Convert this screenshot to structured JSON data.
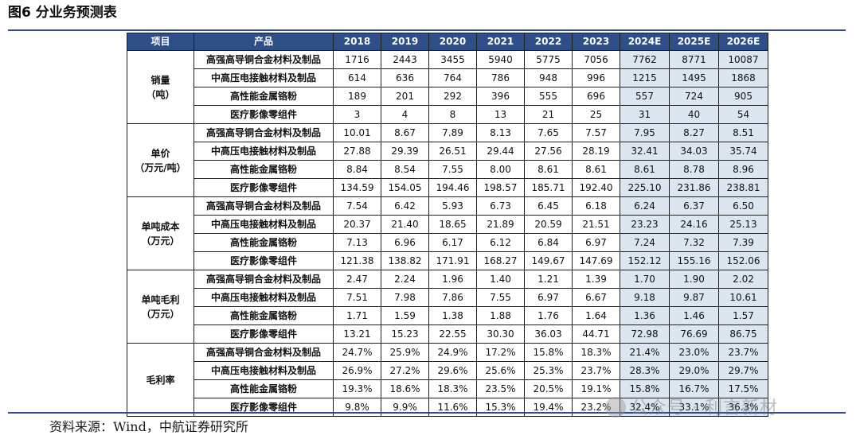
{
  "title": "图6  分业务预测表",
  "source": "资料来源：Wind，中航证券研究所",
  "watermark": "公众号 · 利言新材",
  "colors": {
    "header_bg": "#2d4e86",
    "header_text": "#ffffff",
    "estimate_bg": "#dce6f1",
    "rule": "#2d4e86"
  },
  "table": {
    "headers": [
      "项目",
      "产品",
      "2018",
      "2019",
      "2020",
      "2021",
      "2022",
      "2023",
      "2024E",
      "2025E",
      "2026E"
    ],
    "groups": [
      {
        "label_line1": "销量",
        "label_line2": "（吨）",
        "rows": [
          {
            "product": "高强高导铜合金材料及制品",
            "values": [
              "1716",
              "2443",
              "3455",
              "5940",
              "5775",
              "7056",
              "7762",
              "8771",
              "10087"
            ]
          },
          {
            "product": "中高压电接触材料及制品",
            "values": [
              "614",
              "636",
              "764",
              "786",
              "948",
              "996",
              "1215",
              "1495",
              "1868"
            ]
          },
          {
            "product": "高性能金属铬粉",
            "values": [
              "189",
              "201",
              "292",
              "396",
              "555",
              "696",
              "557",
              "724",
              "905"
            ]
          },
          {
            "product": "医疗影像零组件",
            "values": [
              "3",
              "4",
              "8",
              "13",
              "21",
              "25",
              "31",
              "40",
              "54"
            ]
          }
        ]
      },
      {
        "label_line1": "单价",
        "label_line2": "（万元/吨）",
        "rows": [
          {
            "product": "高强高导铜合金材料及制品",
            "values": [
              "10.01",
              "8.67",
              "7.89",
              "8.13",
              "7.65",
              "7.57",
              "7.95",
              "8.27",
              "8.51"
            ]
          },
          {
            "product": "中高压电接触材料及制品",
            "values": [
              "27.88",
              "29.39",
              "26.51",
              "29.44",
              "27.56",
              "28.19",
              "32.41",
              "34.03",
              "35.74"
            ]
          },
          {
            "product": "高性能金属铬粉",
            "values": [
              "8.84",
              "8.54",
              "7.55",
              "8.00",
              "8.61",
              "8.61",
              "8.61",
              "8.78",
              "8.96"
            ]
          },
          {
            "product": "医疗影像零组件",
            "values": [
              "134.59",
              "154.05",
              "194.46",
              "198.57",
              "185.71",
              "192.40",
              "225.10",
              "231.86",
              "238.81"
            ]
          }
        ]
      },
      {
        "label_line1": "单吨成本",
        "label_line2": "（万元）",
        "rows": [
          {
            "product": "高强高导铜合金材料及制品",
            "values": [
              "7.54",
              "6.42",
              "5.93",
              "6.73",
              "6.45",
              "6.18",
              "6.24",
              "6.37",
              "6.50"
            ]
          },
          {
            "product": "中高压电接触材料及制品",
            "values": [
              "20.37",
              "21.40",
              "18.65",
              "21.89",
              "20.59",
              "21.51",
              "23.23",
              "24.16",
              "25.13"
            ]
          },
          {
            "product": "高性能金属铬粉",
            "values": [
              "7.13",
              "6.96",
              "6.17",
              "6.12",
              "6.84",
              "6.97",
              "7.24",
              "7.32",
              "7.39"
            ]
          },
          {
            "product": "医疗影像零组件",
            "values": [
              "121.38",
              "138.82",
              "171.91",
              "168.27",
              "149.67",
              "147.69",
              "152.12",
              "155.16",
              "152.06"
            ]
          }
        ]
      },
      {
        "label_line1": "单吨毛利",
        "label_line2": "（万元）",
        "rows": [
          {
            "product": "高强高导铜合金材料及制品",
            "values": [
              "2.47",
              "2.24",
              "1.96",
              "1.40",
              "1.21",
              "1.39",
              "1.70",
              "1.90",
              "2.02"
            ]
          },
          {
            "product": "中高压电接触材料及制品",
            "values": [
              "7.51",
              "7.98",
              "7.86",
              "7.55",
              "6.97",
              "6.67",
              "9.18",
              "9.87",
              "10.61"
            ]
          },
          {
            "product": "高性能金属铬粉",
            "values": [
              "1.71",
              "1.59",
              "1.38",
              "1.88",
              "1.76",
              "1.64",
              "1.36",
              "1.46",
              "1.57"
            ]
          },
          {
            "product": "医疗影像零组件",
            "values": [
              "13.21",
              "15.23",
              "22.55",
              "30.30",
              "36.03",
              "44.71",
              "72.98",
              "76.69",
              "86.75"
            ]
          }
        ]
      },
      {
        "label_line1": "毛利率",
        "label_line2": "",
        "rows": [
          {
            "product": "高强高导铜合金材料及制品",
            "values": [
              "24.7%",
              "25.9%",
              "24.9%",
              "17.2%",
              "15.8%",
              "18.3%",
              "21.4%",
              "23.0%",
              "23.7%"
            ]
          },
          {
            "product": "中高压电接触材料及制品",
            "values": [
              "26.9%",
              "27.2%",
              "29.6%",
              "25.6%",
              "25.3%",
              "23.7%",
              "28.3%",
              "29.0%",
              "29.7%"
            ]
          },
          {
            "product": "高性能金属铬粉",
            "values": [
              "19.3%",
              "18.6%",
              "18.3%",
              "23.5%",
              "20.5%",
              "19.1%",
              "15.8%",
              "16.7%",
              "17.5%"
            ]
          },
          {
            "product": "医疗影像零组件",
            "values": [
              "9.8%",
              "9.9%",
              "11.6%",
              "15.3%",
              "19.4%",
              "23.2%",
              "32.4%",
              "33.1%",
              "36.3%"
            ]
          }
        ]
      }
    ]
  }
}
